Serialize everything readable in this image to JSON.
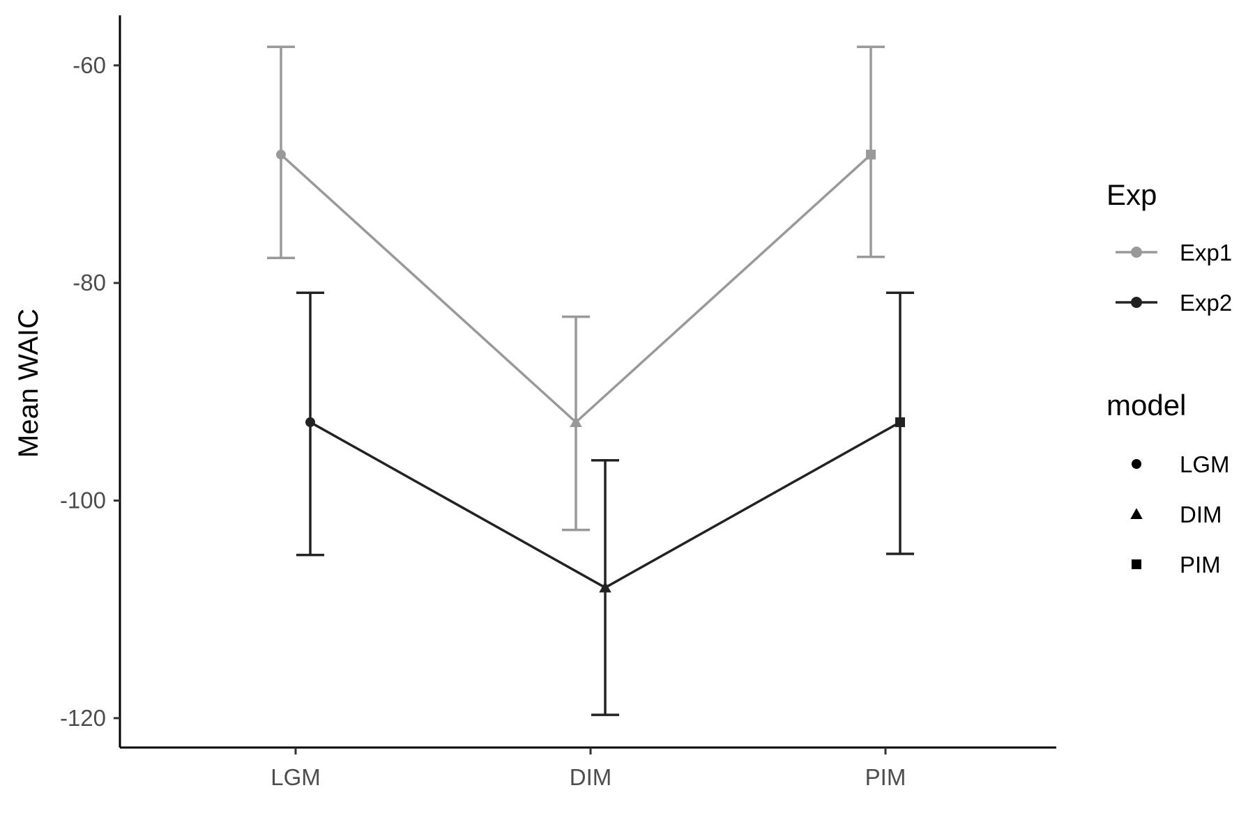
{
  "chart_data": {
    "type": "line",
    "categories": [
      "LGM",
      "DIM",
      "PIM"
    ],
    "title": "",
    "xlabel": "",
    "ylabel": "Mean WAIC",
    "ylim": [
      -122.7,
      -55.4
    ],
    "yticks": [
      -60,
      -80,
      -100,
      -120
    ],
    "yticklabels": [
      "-60",
      "-80",
      "-100",
      "-120"
    ],
    "grid": false,
    "series": [
      {
        "name": "Exp1",
        "color": "#999999",
        "values": [
          -68.2,
          -92.8,
          -68.2
        ],
        "errors_low": [
          -77.7,
          -102.7,
          -77.6
        ],
        "errors_high": [
          -58.3,
          -83.1,
          -58.3
        ]
      },
      {
        "name": "Exp2",
        "color": "#222222",
        "values": [
          -92.8,
          -108.0,
          -92.8
        ],
        "errors_low": [
          -105.0,
          -119.7,
          -104.9
        ],
        "errors_high": [
          -80.9,
          -96.3,
          -80.9
        ]
      }
    ],
    "legend": {
      "placement": "right",
      "color_title": "Exp",
      "shape_title": "model",
      "shapes": [
        {
          "label": "LGM",
          "shape": "circle-icon"
        },
        {
          "label": "DIM",
          "shape": "triangle-icon"
        },
        {
          "label": "PIM",
          "shape": "square-icon"
        }
      ]
    }
  }
}
